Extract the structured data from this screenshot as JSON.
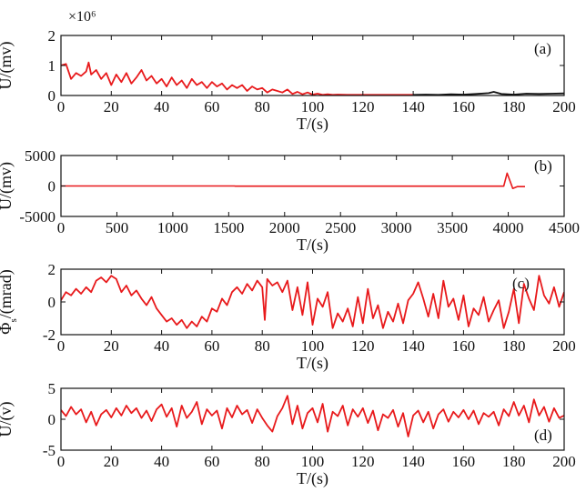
{
  "chart_data": [
    {
      "type": "line",
      "panel": "(a)",
      "xlabel": "T/(s)",
      "ylabel": "U/(mv)",
      "multiplier": "×10⁶",
      "xlim": [
        0,
        200
      ],
      "ylim": [
        0,
        2
      ],
      "xticks": [
        0,
        20,
        40,
        60,
        80,
        100,
        120,
        140,
        160,
        180,
        200
      ],
      "yticks": [
        0,
        1,
        2
      ],
      "series": [
        {
          "name": "red",
          "color": "#e8191b",
          "x": [
            0,
            2,
            4,
            6,
            8,
            10,
            11,
            12,
            14,
            16,
            18,
            20,
            22,
            24,
            26,
            28,
            30,
            32,
            34,
            36,
            38,
            40,
            42,
            44,
            46,
            48,
            50,
            52,
            54,
            56,
            58,
            60,
            62,
            64,
            66,
            68,
            70,
            72,
            74,
            76,
            78,
            80,
            82,
            84,
            86,
            88,
            90,
            92,
            94,
            96,
            98,
            100,
            102,
            104,
            106,
            108,
            110,
            115,
            120,
            125,
            130,
            135,
            140
          ],
          "y": [
            1.0,
            1.05,
            0.55,
            0.75,
            0.65,
            0.8,
            1.1,
            0.7,
            0.85,
            0.55,
            0.75,
            0.35,
            0.7,
            0.45,
            0.75,
            0.4,
            0.6,
            0.85,
            0.5,
            0.65,
            0.4,
            0.55,
            0.3,
            0.6,
            0.35,
            0.5,
            0.25,
            0.55,
            0.35,
            0.45,
            0.25,
            0.45,
            0.3,
            0.4,
            0.2,
            0.35,
            0.25,
            0.35,
            0.15,
            0.3,
            0.2,
            0.25,
            0.1,
            0.2,
            0.15,
            0.1,
            0.2,
            0.05,
            0.12,
            0.04,
            0.1,
            0.03,
            0.06,
            0.02,
            0.04,
            0.02,
            0.03,
            0.02,
            0.02,
            0.02,
            0.02,
            0.02,
            0.02
          ]
        },
        {
          "name": "black",
          "color": "#111111",
          "x": [
            140,
            145,
            150,
            155,
            160,
            165,
            170,
            172,
            175,
            180,
            185,
            190,
            195,
            200
          ],
          "y": [
            0.02,
            0.03,
            0.02,
            0.04,
            0.03,
            0.05,
            0.08,
            0.12,
            0.05,
            0.03,
            0.06,
            0.05,
            0.06,
            0.07
          ]
        }
      ]
    },
    {
      "type": "line",
      "panel": "(b)",
      "xlabel": "T/(s)",
      "ylabel": "U/(mv)",
      "xlim": [
        0,
        4500
      ],
      "ylim": [
        -5000,
        5000
      ],
      "xticks": [
        0,
        500,
        1000,
        1500,
        2000,
        2500,
        3000,
        3500,
        4000,
        4500
      ],
      "yticks": [
        -5000,
        0,
        5000
      ],
      "series": [
        {
          "name": "red",
          "color": "#e8191b",
          "x": [
            0,
            1550,
            1560,
            3960,
            3990,
            4040,
            4080,
            4150
          ],
          "y": [
            0,
            0,
            -30,
            -30,
            2100,
            -400,
            -100,
            -100
          ]
        }
      ]
    },
    {
      "type": "line",
      "panel": "(c)",
      "xlabel": "T/(s)",
      "ylabel": "Φs/(mrad)",
      "ylabel_main": "Φ",
      "ylabel_sub": "s",
      "ylabel_rest": "/(mrad)",
      "xlim": [
        0,
        200
      ],
      "ylim": [
        -2,
        2
      ],
      "xticks": [
        0,
        20,
        40,
        60,
        80,
        100,
        120,
        140,
        160,
        180,
        200
      ],
      "yticks": [
        -2,
        0,
        2
      ],
      "series": [
        {
          "name": "red",
          "color": "#e8191b",
          "x": [
            0,
            2,
            4,
            6,
            8,
            10,
            12,
            14,
            16,
            18,
            20,
            22,
            24,
            26,
            28,
            30,
            32,
            34,
            36,
            38,
            40,
            42,
            44,
            46,
            48,
            50,
            52,
            54,
            56,
            58,
            60,
            62,
            64,
            66,
            68,
            70,
            72,
            74,
            76,
            78,
            80,
            81,
            82,
            84,
            86,
            88,
            90,
            92,
            94,
            96,
            98,
            100,
            102,
            104,
            106,
            108,
            110,
            112,
            114,
            116,
            118,
            120,
            122,
            124,
            126,
            128,
            130,
            132,
            134,
            136,
            138,
            140,
            142,
            144,
            146,
            148,
            150,
            152,
            154,
            156,
            158,
            160,
            162,
            164,
            166,
            168,
            170,
            172,
            174,
            176,
            178,
            180,
            182,
            184,
            186,
            188,
            190,
            192,
            194,
            196,
            198,
            200
          ],
          "y": [
            0.1,
            0.6,
            0.4,
            0.8,
            0.5,
            0.9,
            0.6,
            1.3,
            1.5,
            1.2,
            1.6,
            1.4,
            0.6,
            1.0,
            0.4,
            0.7,
            0.2,
            -0.2,
            0.3,
            -0.4,
            -0.8,
            -1.2,
            -1.0,
            -1.4,
            -1.1,
            -1.6,
            -1.2,
            -1.5,
            -0.9,
            -1.2,
            -0.4,
            -0.6,
            0.2,
            -0.2,
            0.6,
            0.9,
            0.5,
            1.1,
            0.7,
            1.3,
            0.9,
            -1.1,
            1.4,
            1.0,
            1.2,
            0.6,
            1.3,
            -0.5,
            0.9,
            -0.8,
            1.2,
            -1.4,
            0.2,
            -0.3,
            0.6,
            -1.6,
            -0.7,
            -1.2,
            -0.4,
            -1.5,
            0.3,
            -1.3,
            0.8,
            -1.0,
            -0.2,
            -1.6,
            -0.6,
            -1.2,
            -0.1,
            -1.3,
            0.1,
            0.5,
            1.2,
            0.2,
            -0.9,
            0.5,
            -1.0,
            1.3,
            -0.3,
            0.2,
            -1.1,
            0.4,
            -1.5,
            -0.4,
            -0.8,
            0.3,
            -1.2,
            -0.5,
            0.1,
            -1.6,
            -0.6,
            0.8,
            -1.3,
            1.1,
            0.2,
            -0.5,
            1.6,
            0.4,
            -0.1,
            0.9,
            -0.3,
            0.6
          ]
        }
      ]
    },
    {
      "type": "line",
      "panel": "(d)",
      "xlabel": "T/(s)",
      "ylabel": "U/(v)",
      "xlim": [
        0,
        200
      ],
      "ylim": [
        -5,
        5
      ],
      "xticks": [
        0,
        20,
        40,
        60,
        80,
        100,
        120,
        140,
        160,
        180,
        200
      ],
      "yticks": [
        -5,
        0,
        5
      ],
      "series": [
        {
          "name": "red",
          "color": "#e8191b",
          "x": [
            0,
            2,
            4,
            6,
            8,
            10,
            12,
            14,
            16,
            18,
            20,
            22,
            24,
            26,
            28,
            30,
            32,
            34,
            36,
            38,
            40,
            42,
            44,
            46,
            48,
            50,
            52,
            54,
            56,
            58,
            60,
            62,
            64,
            66,
            68,
            70,
            72,
            74,
            76,
            78,
            80,
            82,
            84,
            86,
            88,
            90,
            92,
            94,
            96,
            98,
            100,
            102,
            104,
            106,
            108,
            110,
            112,
            114,
            116,
            118,
            120,
            122,
            124,
            126,
            128,
            130,
            132,
            134,
            136,
            138,
            140,
            142,
            144,
            146,
            148,
            150,
            152,
            154,
            156,
            158,
            160,
            162,
            164,
            166,
            168,
            170,
            172,
            174,
            176,
            178,
            180,
            182,
            184,
            186,
            188,
            190,
            192,
            194,
            196,
            198,
            200
          ],
          "y": [
            1.5,
            0.5,
            2.0,
            0.8,
            1.6,
            -0.5,
            1.2,
            -1.0,
            0.8,
            1.5,
            0.3,
            1.8,
            0.6,
            2.2,
            1.0,
            1.8,
            0.2,
            1.4,
            -0.3,
            1.6,
            2.4,
            0.4,
            1.8,
            -1.2,
            2.2,
            0.2,
            1.2,
            2.8,
            -0.8,
            1.6,
            0.6,
            1.4,
            -1.5,
            1.8,
            0.3,
            2.2,
            0.8,
            1.5,
            -0.6,
            1.6,
            0.2,
            -1.0,
            -2.0,
            0.5,
            1.8,
            3.8,
            -0.8,
            2.2,
            -1.5,
            1.0,
            1.8,
            -0.5,
            2.5,
            -2.0,
            1.2,
            0.5,
            2.2,
            -1.0,
            1.6,
            0.4,
            1.8,
            -0.6,
            1.4,
            -1.8,
            0.8,
            0.2,
            1.5,
            -1.2,
            1.0,
            -2.8,
            0.6,
            1.4,
            -0.5,
            1.2,
            -1.5,
            0.8,
            1.6,
            -0.4,
            1.2,
            0.3,
            1.5,
            0.0,
            1.4,
            -0.8,
            1.0,
            0.4,
            1.2,
            -1.0,
            1.6,
            0.5,
            2.8,
            0.6,
            2.2,
            -0.5,
            3.2,
            0.6,
            2.0,
            -0.4,
            1.8,
            0.2,
            0.6
          ]
        }
      ]
    }
  ]
}
